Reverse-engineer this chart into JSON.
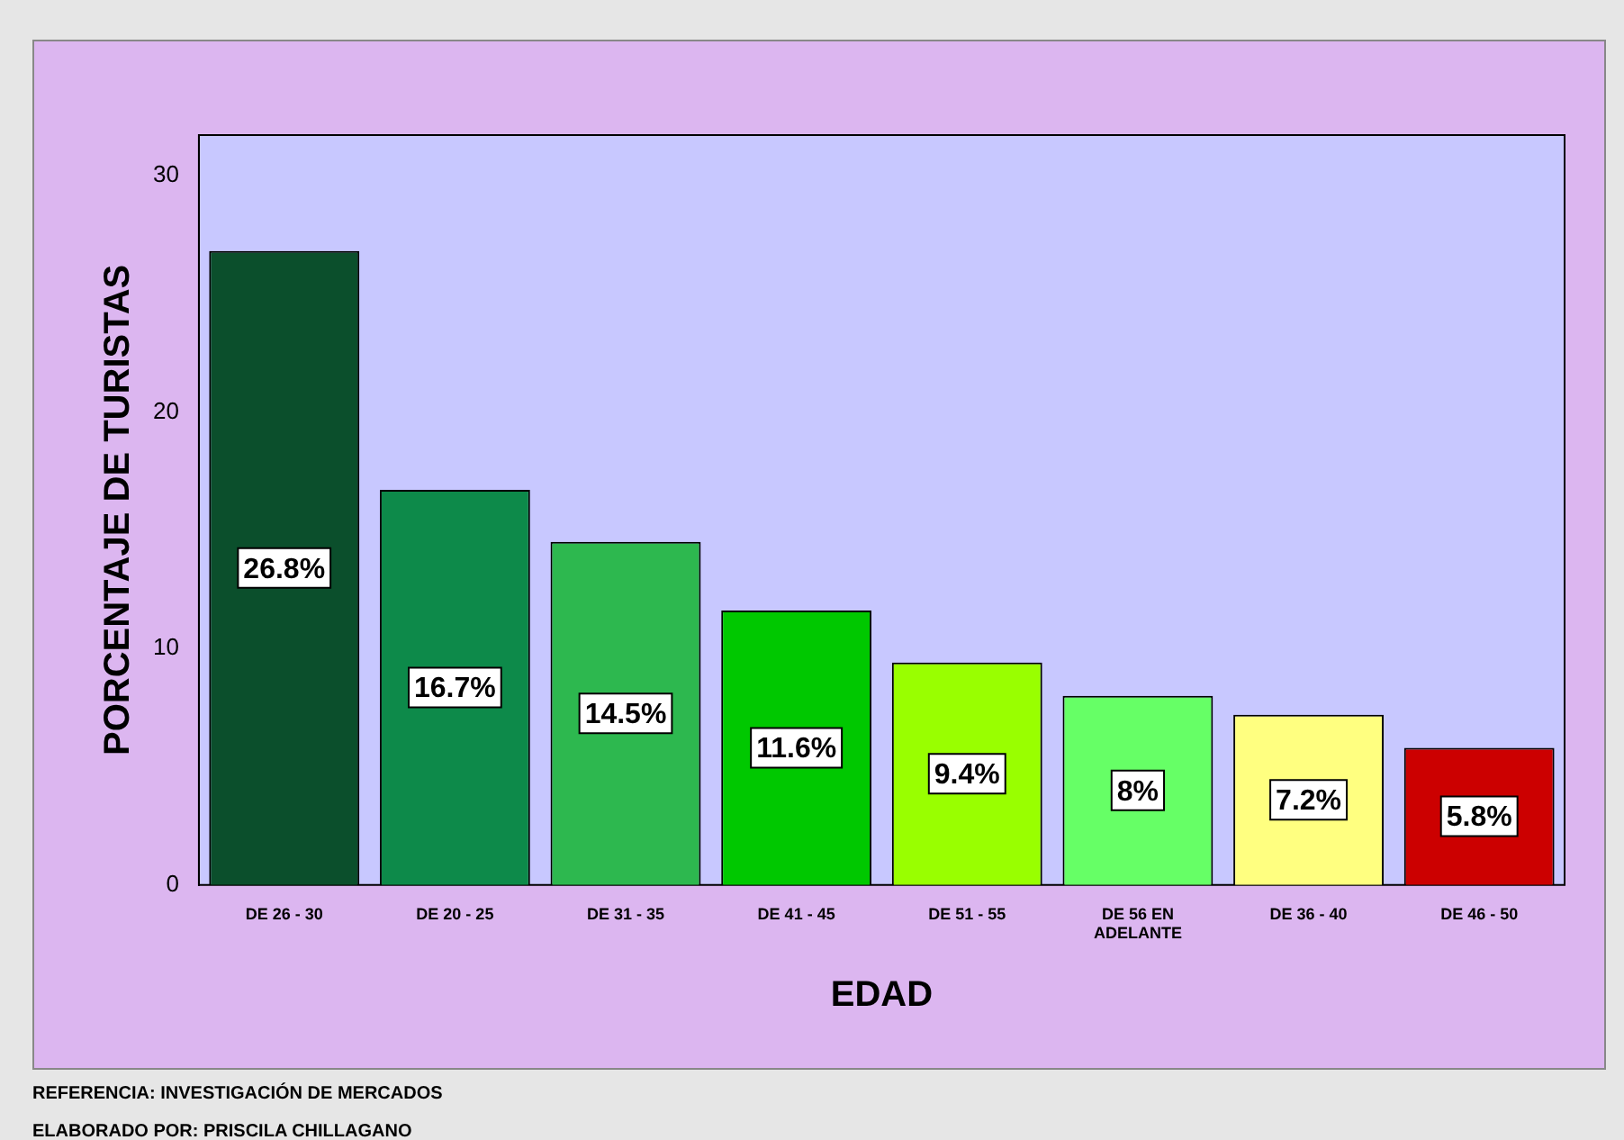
{
  "chart_data": {
    "type": "bar",
    "xlabel": "EDAD",
    "ylabel": "PORCENTAJE DE TURISTAS",
    "categories": [
      "DE 26 - 30",
      "DE 20 - 25",
      "DE 31 - 35",
      "DE 41 - 45",
      "DE 51 - 55",
      "DE 56 EN ADELANTE",
      "DE 36 - 40",
      "DE 46 - 50"
    ],
    "values": [
      26.8,
      16.7,
      14.5,
      11.6,
      9.4,
      8,
      7.2,
      5.8
    ],
    "value_labels": [
      "26.8%",
      "16.7%",
      "14.5%",
      "11.6%",
      "9.4%",
      "8%",
      "7.2%",
      "5.8%"
    ],
    "colors": [
      "#0b4f2c",
      "#0d8a4a",
      "#2db84f",
      "#00c800",
      "#99ff00",
      "#66ff66",
      "#ffff80",
      "#cc0000"
    ],
    "ylim": [
      0,
      31.7
    ],
    "yticks": [
      0,
      10,
      20,
      30
    ],
    "grid": false,
    "legend": false,
    "annotations": [
      "REFERENCIA: INVESTIGACIÓN DE MERCADOS",
      "ELABORADO POR: PRISCILA CHILLAGANO"
    ]
  }
}
